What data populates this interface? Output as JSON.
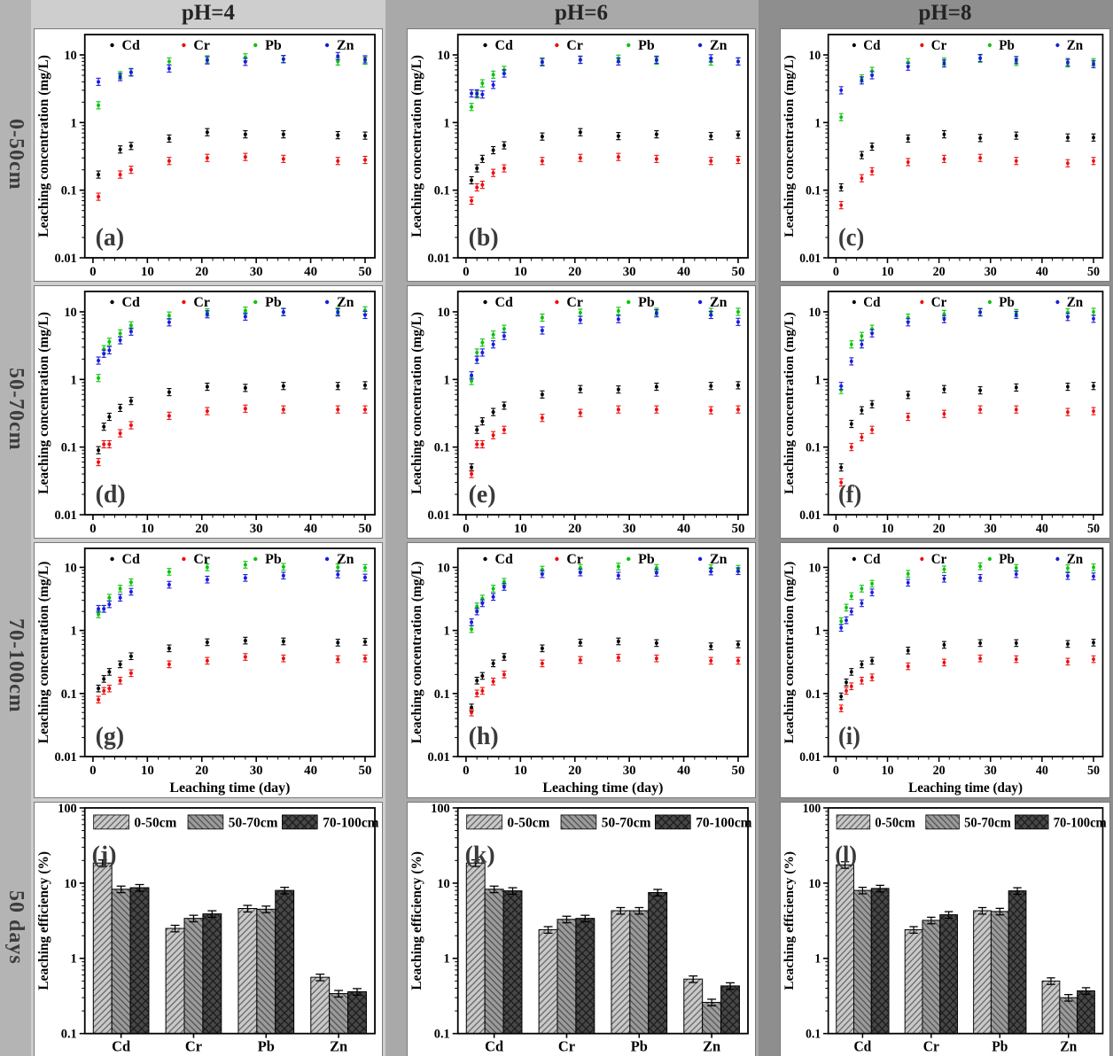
{
  "columns": [
    {
      "header": "pH=4"
    },
    {
      "header": "pH=6"
    },
    {
      "header": "pH=8"
    }
  ],
  "rows": [
    {
      "label": "0-50cm"
    },
    {
      "label": "50-70cm"
    },
    {
      "label": "70-100cm"
    },
    {
      "label": "50 days"
    }
  ],
  "axes": {
    "conc_label": "Leaching concentration (mg/L)",
    "time_label": "Leaching time (day)",
    "eff_label": "Leaching efficiency (%)",
    "conc_ticks": [
      "0.01",
      "0.1",
      "1",
      "10"
    ],
    "eff_ticks": [
      "0.1",
      "1",
      "10",
      "100"
    ],
    "time_ticks": [
      0,
      10,
      20,
      30,
      40,
      50
    ],
    "conc_range": [
      0.01,
      20
    ],
    "eff_range": [
      0.1,
      100
    ],
    "time_range": [
      -1.5,
      51.8
    ]
  },
  "metal_colors": {
    "Cd": "#000000",
    "Cr": "#ed0e0e",
    "Pb": "#0cc40c",
    "Zn": "#1b1bdc"
  },
  "bar_styles": [
    {
      "name": "0-50cm",
      "fill": "#c9c9c9",
      "hatch": "fwd",
      "line": "#5f5f5f"
    },
    {
      "name": "50-70cm",
      "fill": "#9b9b9b",
      "hatch": "bwd",
      "line": "#4d4d4d"
    },
    {
      "name": "70-100cm",
      "fill": "#474747",
      "hatch": "cross",
      "line": "#1a1a1a"
    }
  ],
  "chart_data": [
    {
      "letter": "(a)",
      "type": "scatter",
      "col": "pH=4",
      "row": "0-50cm",
      "x": [
        1,
        5,
        7,
        14,
        21,
        28,
        35,
        45,
        50
      ],
      "series": [
        {
          "name": "Cd",
          "y": [
            0.17,
            0.4,
            0.45,
            0.58,
            0.72,
            0.67,
            0.67,
            0.65,
            0.64
          ]
        },
        {
          "name": "Cr",
          "y": [
            0.08,
            0.17,
            0.2,
            0.27,
            0.3,
            0.31,
            0.29,
            0.27,
            0.28
          ]
        },
        {
          "name": "Pb",
          "y": [
            1.8,
            5.0,
            5.6,
            8.0,
            8.6,
            9.2,
            8.6,
            8.0,
            8.2
          ]
        },
        {
          "name": "Zn",
          "y": [
            4.0,
            4.7,
            5.5,
            6.3,
            8.3,
            7.9,
            8.7,
            9.6,
            8.6
          ]
        }
      ]
    },
    {
      "letter": "(b)",
      "type": "scatter",
      "col": "pH=6",
      "row": "0-50cm",
      "x": [
        1,
        2,
        3,
        5,
        7,
        14,
        21,
        28,
        35,
        45,
        50
      ],
      "series": [
        {
          "name": "Cd",
          "y": [
            0.14,
            0.21,
            0.29,
            0.39,
            0.46,
            0.62,
            0.72,
            0.63,
            0.67,
            0.63,
            0.66
          ]
        },
        {
          "name": "Cr",
          "y": [
            0.07,
            0.11,
            0.12,
            0.18,
            0.21,
            0.27,
            0.3,
            0.31,
            0.29,
            0.27,
            0.28
          ]
        },
        {
          "name": "Pb",
          "y": [
            1.7,
            2.6,
            3.8,
            5.1,
            6.0,
            8.0,
            8.4,
            8.8,
            8.2,
            8.0,
            8.0
          ]
        },
        {
          "name": "Zn",
          "y": [
            2.7,
            2.7,
            2.6,
            3.6,
            5.3,
            7.8,
            8.5,
            8.0,
            8.5,
            8.9,
            8.0
          ]
        }
      ]
    },
    {
      "letter": "(c)",
      "type": "scatter",
      "col": "pH=8",
      "row": "0-50cm",
      "x": [
        1,
        5,
        7,
        14,
        21,
        28,
        35,
        45,
        50
      ],
      "series": [
        {
          "name": "Cd",
          "y": [
            0.11,
            0.33,
            0.44,
            0.58,
            0.67,
            0.59,
            0.64,
            0.6,
            0.6
          ]
        },
        {
          "name": "Cr",
          "y": [
            0.06,
            0.15,
            0.19,
            0.26,
            0.29,
            0.3,
            0.27,
            0.25,
            0.27
          ]
        },
        {
          "name": "Pb",
          "y": [
            1.2,
            4.5,
            5.8,
            7.8,
            8.0,
            8.8,
            7.9,
            7.5,
            7.8
          ]
        },
        {
          "name": "Zn",
          "y": [
            3.0,
            4.2,
            5.0,
            6.7,
            7.5,
            9.0,
            8.4,
            7.8,
            7.3
          ]
        }
      ]
    },
    {
      "letter": "(d)",
      "type": "scatter",
      "col": "pH=4",
      "row": "50-70cm",
      "x": [
        1,
        2,
        3,
        5,
        7,
        14,
        21,
        28,
        35,
        45,
        50
      ],
      "series": [
        {
          "name": "Cd",
          "y": [
            0.09,
            0.2,
            0.28,
            0.38,
            0.48,
            0.65,
            0.78,
            0.75,
            0.8,
            0.8,
            0.82
          ]
        },
        {
          "name": "Cr",
          "y": [
            0.06,
            0.11,
            0.11,
            0.16,
            0.21,
            0.29,
            0.34,
            0.37,
            0.36,
            0.36,
            0.36
          ]
        },
        {
          "name": "Pb",
          "y": [
            1.05,
            2.8,
            3.6,
            4.8,
            6.3,
            8.8,
            9.8,
            10.4,
            10.0,
            10.2,
            10.5
          ]
        },
        {
          "name": "Zn",
          "y": [
            1.9,
            2.4,
            2.7,
            3.8,
            5.1,
            7.0,
            9.2,
            8.5,
            9.9,
            9.8,
            9.0
          ]
        }
      ]
    },
    {
      "letter": "(e)",
      "type": "scatter",
      "col": "pH=6",
      "row": "50-70cm",
      "x": [
        1,
        2,
        3,
        5,
        7,
        14,
        21,
        28,
        35,
        45,
        50
      ],
      "series": [
        {
          "name": "Cd",
          "y": [
            0.05,
            0.18,
            0.24,
            0.33,
            0.41,
            0.6,
            0.72,
            0.71,
            0.78,
            0.8,
            0.82
          ]
        },
        {
          "name": "Cr",
          "y": [
            0.04,
            0.11,
            0.11,
            0.15,
            0.18,
            0.27,
            0.32,
            0.36,
            0.36,
            0.35,
            0.36
          ]
        },
        {
          "name": "Pb",
          "y": [
            0.95,
            2.5,
            3.5,
            4.6,
            5.6,
            8.2,
            9.7,
            10.3,
            10.0,
            10.0,
            10.0
          ]
        },
        {
          "name": "Zn",
          "y": [
            1.15,
            1.95,
            2.5,
            3.3,
            4.4,
            5.3,
            7.6,
            7.8,
            9.5,
            9.0,
            7.1
          ]
        }
      ]
    },
    {
      "letter": "(f)",
      "type": "scatter",
      "col": "pH=8",
      "row": "50-70cm",
      "x": [
        1,
        3,
        5,
        7,
        14,
        21,
        28,
        35,
        45,
        50
      ],
      "series": [
        {
          "name": "Cd",
          "y": [
            0.05,
            0.22,
            0.35,
            0.43,
            0.59,
            0.72,
            0.69,
            0.76,
            0.78,
            0.8
          ]
        },
        {
          "name": "Cr",
          "y": [
            0.03,
            0.1,
            0.14,
            0.18,
            0.28,
            0.31,
            0.36,
            0.36,
            0.33,
            0.34
          ]
        },
        {
          "name": "Pb",
          "y": [
            0.7,
            3.3,
            4.4,
            5.6,
            8.2,
            9.3,
            10.0,
            9.6,
            9.8,
            10.0
          ]
        },
        {
          "name": "Zn",
          "y": [
            0.8,
            1.85,
            3.3,
            4.8,
            7.0,
            7.8,
            9.8,
            9.0,
            8.4,
            7.9
          ]
        }
      ]
    },
    {
      "letter": "(g)",
      "type": "scatter",
      "col": "pH=4",
      "row": "70-100cm",
      "has_x_title": true,
      "x": [
        1,
        2,
        3,
        5,
        7,
        14,
        21,
        28,
        35,
        45,
        50
      ],
      "series": [
        {
          "name": "Cd",
          "y": [
            0.12,
            0.17,
            0.22,
            0.29,
            0.39,
            0.52,
            0.65,
            0.69,
            0.67,
            0.64,
            0.66
          ]
        },
        {
          "name": "Cr",
          "y": [
            0.08,
            0.11,
            0.12,
            0.16,
            0.21,
            0.29,
            0.33,
            0.38,
            0.36,
            0.35,
            0.36
          ]
        },
        {
          "name": "Pb",
          "y": [
            1.8,
            2.2,
            3.3,
            4.6,
            5.8,
            8.5,
            10.0,
            11.0,
            10.2,
            10.0,
            9.8
          ]
        },
        {
          "name": "Zn",
          "y": [
            2.2,
            2.2,
            2.6,
            3.3,
            4.1,
            5.3,
            6.4,
            6.8,
            7.4,
            7.7,
            6.9
          ]
        }
      ]
    },
    {
      "letter": "(h)",
      "type": "scatter",
      "col": "pH=6",
      "row": "70-100cm",
      "has_x_title": true,
      "x": [
        1,
        2,
        3,
        5,
        7,
        14,
        21,
        28,
        35,
        45,
        50
      ],
      "series": [
        {
          "name": "Cd",
          "y": [
            0.06,
            0.16,
            0.19,
            0.3,
            0.38,
            0.52,
            0.64,
            0.67,
            0.63,
            0.56,
            0.6
          ]
        },
        {
          "name": "Cr",
          "y": [
            0.05,
            0.1,
            0.11,
            0.155,
            0.2,
            0.3,
            0.34,
            0.37,
            0.36,
            0.33,
            0.33
          ]
        },
        {
          "name": "Pb",
          "y": [
            1.05,
            2.4,
            3.2,
            4.6,
            5.9,
            9.2,
            9.8,
            10.3,
            9.8,
            9.7,
            9.5
          ]
        },
        {
          "name": "Zn",
          "y": [
            1.35,
            2.0,
            2.7,
            3.4,
            4.9,
            7.8,
            8.3,
            7.4,
            8.2,
            8.6,
            8.7
          ]
        }
      ]
    },
    {
      "letter": "(i)",
      "type": "scatter",
      "col": "pH=8",
      "row": "70-100cm",
      "has_x_title": true,
      "x": [
        1,
        2,
        3,
        5,
        7,
        14,
        21,
        28,
        35,
        45,
        50
      ],
      "series": [
        {
          "name": "Cd",
          "y": [
            0.09,
            0.15,
            0.22,
            0.29,
            0.33,
            0.48,
            0.59,
            0.63,
            0.63,
            0.61,
            0.64
          ]
        },
        {
          "name": "Cr",
          "y": [
            0.058,
            0.11,
            0.13,
            0.16,
            0.18,
            0.27,
            0.31,
            0.36,
            0.35,
            0.32,
            0.35
          ]
        },
        {
          "name": "Pb",
          "y": [
            1.4,
            2.3,
            3.5,
            4.6,
            5.5,
            7.9,
            9.3,
            10.4,
            9.8,
            9.7,
            10.0
          ]
        },
        {
          "name": "Zn",
          "y": [
            1.1,
            1.45,
            2.0,
            2.7,
            4.0,
            5.7,
            6.6,
            6.8,
            7.8,
            7.3,
            7.2
          ]
        }
      ]
    },
    {
      "letter": "(j)",
      "type": "bar",
      "col": "pH=4",
      "row": "50 days",
      "categories": [
        "Cd",
        "Cr",
        "Pb",
        "Zn"
      ],
      "series": [
        {
          "name": "0-50cm",
          "values": [
            18.5,
            2.5,
            4.6,
            0.56
          ]
        },
        {
          "name": "50-70cm",
          "values": [
            8.3,
            3.4,
            4.5,
            0.34
          ]
        },
        {
          "name": "70-100cm",
          "values": [
            8.7,
            3.9,
            8.0,
            0.36
          ]
        }
      ]
    },
    {
      "letter": "(k)",
      "type": "bar",
      "col": "pH=6",
      "row": "50 days",
      "categories": [
        "Cd",
        "Cr",
        "Pb",
        "Zn"
      ],
      "series": [
        {
          "name": "0-50cm",
          "values": [
            18.5,
            2.4,
            4.3,
            0.53
          ]
        },
        {
          "name": "50-70cm",
          "values": [
            8.3,
            3.3,
            4.3,
            0.26
          ]
        },
        {
          "name": "70-100cm",
          "values": [
            7.9,
            3.4,
            7.5,
            0.43
          ]
        }
      ]
    },
    {
      "letter": "(l)",
      "type": "bar",
      "col": "pH=8",
      "row": "50 days",
      "categories": [
        "Cd",
        "Cr",
        "Pb",
        "Zn"
      ],
      "series": [
        {
          "name": "0-50cm",
          "values": [
            17.5,
            2.4,
            4.3,
            0.5
          ]
        },
        {
          "name": "50-70cm",
          "values": [
            8.0,
            3.2,
            4.2,
            0.3
          ]
        },
        {
          "name": "70-100cm",
          "values": [
            8.5,
            3.8,
            7.9,
            0.37
          ]
        }
      ]
    }
  ]
}
